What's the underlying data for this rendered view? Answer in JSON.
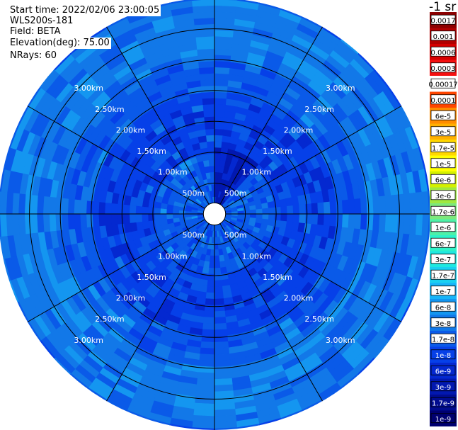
{
  "header": {
    "start_time": "Start time: 2022/02/06 23:00:05",
    "instrument": "WLS200s-181",
    "field": "Field: BETA",
    "elevation": "Elevation(deg): 75.00",
    "nrays": "NRays: 60"
  },
  "colorbar": {
    "unit_label": "-1 sr",
    "entries": [
      {
        "label": "0.0017",
        "color": "#8b0000",
        "text_color": "#000000"
      },
      {
        "label": "0.001",
        "color": "#b00000",
        "text_color": "#000000"
      },
      {
        "label": "0.0006",
        "color": "#d40000",
        "text_color": "#000000"
      },
      {
        "label": "0.0003",
        "color": "#f41010",
        "text_color": "#000000"
      },
      {
        "label": "0.00017",
        "color": "#ffffff",
        "text_color": "#000000"
      },
      {
        "label": "0.0001",
        "color": "#ff4500",
        "text_color": "#000000"
      },
      {
        "label": "6e-5",
        "color": "#ff8c00",
        "text_color": "#000000"
      },
      {
        "label": "3e-5",
        "color": "#ffb000",
        "text_color": "#000000"
      },
      {
        "label": "1.7e-5",
        "color": "#ffd700",
        "text_color": "#000000"
      },
      {
        "label": "1e-5",
        "color": "#ffff00",
        "text_color": "#000000"
      },
      {
        "label": "6e-6",
        "color": "#d4f000",
        "text_color": "#000000"
      },
      {
        "label": "3e-6",
        "color": "#a0e840",
        "text_color": "#000000"
      },
      {
        "label": "1.7e-6",
        "color": "#7ce87c",
        "text_color": "#000000"
      },
      {
        "label": "1e-6",
        "color": "#4ef0a8",
        "text_color": "#000000"
      },
      {
        "label": "6e-7",
        "color": "#2ef2c8",
        "text_color": "#000000"
      },
      {
        "label": "3e-7",
        "color": "#1ee8e0",
        "text_color": "#000000"
      },
      {
        "label": "1.7e-7",
        "color": "#1ad0f0",
        "text_color": "#000000"
      },
      {
        "label": "1e-7",
        "color": "#18b4f8",
        "text_color": "#000000"
      },
      {
        "label": "6e-8",
        "color": "#1496f0",
        "text_color": "#000000"
      },
      {
        "label": "3e-8",
        "color": "#1278e8",
        "text_color": "#000000"
      },
      {
        "label": "1.7e-8",
        "color": "#0a5ae8",
        "text_color": "#000000"
      },
      {
        "label": "1e-8",
        "color": "#0640e8",
        "text_color": "#ffffff"
      },
      {
        "label": "6e-9",
        "color": "#0428d0",
        "text_color": "#ffffff"
      },
      {
        "label": "3e-9",
        "color": "#0218b0",
        "text_color": "#ffffff"
      },
      {
        "label": "1.7e-9",
        "color": "#010c90",
        "text_color": "#ffffff"
      },
      {
        "label": "1e-9",
        "color": "#000070",
        "text_color": "#ffffff"
      }
    ]
  },
  "chart_data": {
    "type": "heatmap",
    "projection": "polar",
    "nrays": 60,
    "range_rings_km": [
      0.5,
      1.0,
      1.5,
      2.0,
      2.5,
      3.0
    ],
    "range_ring_labels": [
      "500m",
      "1.00km",
      "1.50km",
      "2.00km",
      "2.50km",
      "3.00km"
    ],
    "ring_label_positions": [
      "upper-left",
      "upper-right",
      "lower-left",
      "lower-right"
    ],
    "max_range_km": 3.5,
    "azimuth_spokes_deg": [
      0,
      30,
      60,
      90,
      120,
      150,
      180,
      210,
      240,
      270,
      300,
      330
    ],
    "dominant_values": [
      "1e-8",
      "1.7e-8",
      "3e-8",
      "6e-8"
    ],
    "range_profile": [
      {
        "range_km": [
          0.2,
          1.0
        ],
        "typical_value": "1.7e-8"
      },
      {
        "range_km": [
          1.0,
          2.0
        ],
        "typical_value": "1e-8"
      },
      {
        "range_km": [
          2.0,
          2.5
        ],
        "typical_value": "1.7e-8"
      },
      {
        "range_km": [
          2.5,
          3.5
        ],
        "typical_value": "3e-8"
      }
    ],
    "notable_feature": "lower values (3e-9 to 6e-9) in the north-northeast sector near the center"
  }
}
